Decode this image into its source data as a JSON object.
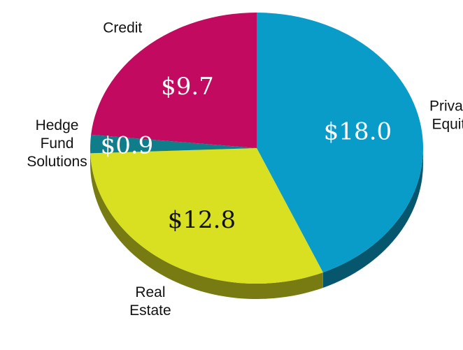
{
  "chart_data": {
    "type": "pie",
    "categories": [
      "Private Equity",
      "Real Estate",
      "Hedge Fund Solutions",
      "Credit"
    ],
    "values": [
      18.0,
      12.8,
      0.9,
      9.7
    ],
    "value_labels": [
      "$18.0",
      "$12.8",
      "$0.9",
      "$9.7"
    ],
    "colors": [
      "#0a9cc8",
      "#d8e021",
      "#0f7e8a",
      "#c10a60"
    ],
    "value_label_colors": [
      "#ffffff",
      "#111111",
      "#ffffff",
      "#ffffff"
    ],
    "start_angle": 0,
    "direction": "clockwise"
  }
}
